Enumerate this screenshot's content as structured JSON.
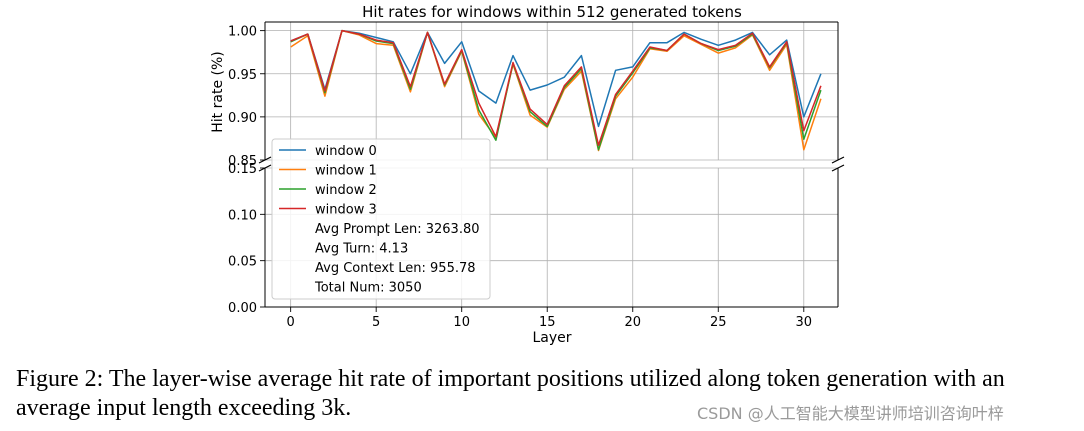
{
  "chart_data": {
    "type": "line",
    "title": "Hit rates for windows within 512 generated tokens",
    "xlabel": "Layer",
    "ylabel": "Hit rate (%)",
    "xlim": [
      -1.5,
      32.0
    ],
    "x_ticks": [
      "0",
      "5",
      "10",
      "15",
      "20",
      "25",
      "30"
    ],
    "y_ticks_upper": [
      "0.85",
      "0.90",
      "0.95",
      "1.00"
    ],
    "y_ticks_lower": [
      "0.00",
      "0.05",
      "0.10",
      "0.15"
    ],
    "ylim_upper": [
      0.85,
      1.01
    ],
    "ylim_lower": [
      0.0,
      0.15
    ],
    "broken_axis": true,
    "grid": true,
    "legend_position": "upper-left of lower panel",
    "x": [
      0,
      1,
      2,
      3,
      4,
      5,
      6,
      7,
      8,
      9,
      10,
      11,
      12,
      13,
      14,
      15,
      16,
      17,
      18,
      19,
      20,
      21,
      22,
      23,
      24,
      25,
      26,
      27,
      28,
      29,
      30,
      31
    ],
    "series": [
      {
        "name": "window 0",
        "color": "#1f77b4",
        "values": [
          0.988,
          0.996,
          0.932,
          1.0,
          0.997,
          0.992,
          0.987,
          0.95,
          0.998,
          0.962,
          0.987,
          0.93,
          0.916,
          0.971,
          0.931,
          0.937,
          0.946,
          0.971,
          0.889,
          0.954,
          0.958,
          0.986,
          0.986,
          0.998,
          0.99,
          0.983,
          0.989,
          0.998,
          0.972,
          0.989,
          0.9,
          0.95
        ]
      },
      {
        "name": "window 1",
        "color": "#ff7f0e",
        "values": [
          0.981,
          0.994,
          0.924,
          1.0,
          0.995,
          0.985,
          0.983,
          0.929,
          0.998,
          0.935,
          0.976,
          0.903,
          0.876,
          0.961,
          0.902,
          0.888,
          0.932,
          0.953,
          0.861,
          0.921,
          0.946,
          0.979,
          0.976,
          0.994,
          0.984,
          0.974,
          0.98,
          0.995,
          0.954,
          0.984,
          0.862,
          0.921
        ]
      },
      {
        "name": "window 2",
        "color": "#2ca02c",
        "values": [
          0.987,
          0.996,
          0.928,
          1.0,
          0.996,
          0.988,
          0.985,
          0.932,
          0.998,
          0.937,
          0.977,
          0.908,
          0.873,
          0.962,
          0.906,
          0.889,
          0.934,
          0.956,
          0.862,
          0.924,
          0.951,
          0.98,
          0.977,
          0.996,
          0.985,
          0.977,
          0.982,
          0.996,
          0.957,
          0.986,
          0.874,
          0.931
        ]
      },
      {
        "name": "window 3",
        "color": "#d62728",
        "values": [
          0.988,
          0.996,
          0.93,
          1.0,
          0.996,
          0.989,
          0.986,
          0.935,
          0.998,
          0.938,
          0.978,
          0.916,
          0.877,
          0.963,
          0.909,
          0.891,
          0.936,
          0.958,
          0.867,
          0.926,
          0.953,
          0.981,
          0.977,
          0.996,
          0.985,
          0.978,
          0.983,
          0.997,
          0.958,
          0.987,
          0.884,
          0.936
        ]
      }
    ],
    "annotations": [
      "Avg Prompt Len: 3263.80",
      "Avg Turn: 4.13",
      "Avg Context Len: 955.78",
      "Total Num: 3050"
    ]
  },
  "caption": "Figure 2: The layer-wise average hit rate of important positions utilized along token generation with an average input length exceeding 3k.",
  "watermark": "CSDN @人工智能大模型讲师培训咨询叶梓"
}
